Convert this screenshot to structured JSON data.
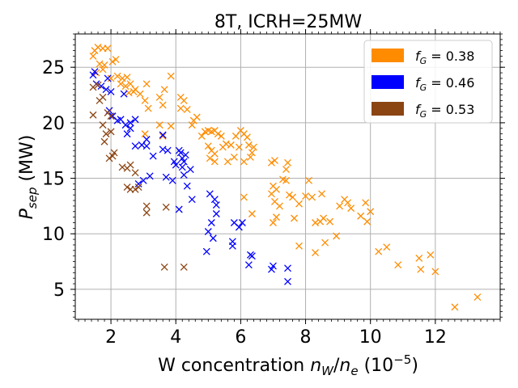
{
  "chart_data": {
    "type": "scatter",
    "title": "8T, ICRH=25MW",
    "xlabel": {
      "prefix": "W concentration ",
      "var1": "n",
      "sub1": "W",
      "slash": "/",
      "var2": "n",
      "sub2": "e",
      "unit_open": " (10",
      "unit_exp": "−5",
      "unit_close": ")"
    },
    "ylabel": {
      "var": "P",
      "sub": "sep",
      "unit": " (MW)"
    },
    "xlim": [
      0.9,
      14.0
    ],
    "ylim": [
      2.3,
      28.0
    ],
    "x_ticks": [
      2,
      4,
      6,
      8,
      10,
      12
    ],
    "y_ticks": [
      5,
      10,
      15,
      20,
      25
    ],
    "grid": true,
    "legend_position": "top-right",
    "marker": "x",
    "series": [
      {
        "name": "f_G=0.38",
        "legend_var": "f",
        "legend_sub": "G",
        "legend_value": " = 0.38",
        "color": "#ff8c00",
        "points": [
          [
            1.45,
            26.0
          ],
          [
            1.5,
            26.5
          ],
          [
            1.6,
            26.8
          ],
          [
            1.75,
            26.7
          ],
          [
            1.9,
            26.7
          ],
          [
            1.65,
            25.3
          ],
          [
            1.8,
            25.2
          ],
          [
            2.05,
            25.5
          ],
          [
            2.15,
            25.7
          ],
          [
            1.55,
            24.5
          ],
          [
            1.75,
            24.8
          ],
          [
            2.0,
            24.0
          ],
          [
            2.2,
            24.2
          ],
          [
            2.35,
            24.0
          ],
          [
            2.5,
            24.1
          ],
          [
            2.3,
            23.5
          ],
          [
            2.45,
            23.3
          ],
          [
            2.6,
            23.5
          ],
          [
            2.75,
            23.0
          ],
          [
            2.55,
            22.7
          ],
          [
            2.7,
            22.8
          ],
          [
            2.9,
            22.6
          ],
          [
            3.1,
            23.5
          ],
          [
            3.05,
            22.0
          ],
          [
            3.15,
            21.3
          ],
          [
            3.5,
            22.3
          ],
          [
            3.6,
            21.6
          ],
          [
            3.65,
            23.0
          ],
          [
            3.85,
            24.2
          ],
          [
            4.15,
            22.3
          ],
          [
            4.25,
            22.0
          ],
          [
            4.15,
            21.3
          ],
          [
            4.35,
            21.2
          ],
          [
            4.55,
            20.2
          ],
          [
            4.65,
            20.5
          ],
          [
            4.5,
            19.8
          ],
          [
            4.8,
            18.8
          ],
          [
            4.9,
            19.2
          ],
          [
            5.0,
            19.3
          ],
          [
            5.1,
            19.2
          ],
          [
            5.2,
            19.3
          ],
          [
            5.3,
            19.0
          ],
          [
            5.4,
            18.8
          ],
          [
            5.0,
            17.9
          ],
          [
            5.1,
            17.5
          ],
          [
            5.2,
            17.2
          ],
          [
            5.05,
            16.8
          ],
          [
            5.2,
            16.5
          ],
          [
            5.45,
            17.8
          ],
          [
            5.55,
            18.1
          ],
          [
            5.85,
            18.8
          ],
          [
            6.0,
            19.3
          ],
          [
            6.1,
            19.0
          ],
          [
            6.2,
            18.7
          ],
          [
            5.7,
            18.0
          ],
          [
            5.95,
            17.8
          ],
          [
            6.25,
            18.0
          ],
          [
            6.35,
            17.3
          ],
          [
            6.4,
            17.8
          ],
          [
            5.8,
            16.9
          ],
          [
            6.1,
            16.5
          ],
          [
            6.3,
            16.9
          ],
          [
            5.6,
            16.5
          ],
          [
            6.1,
            13.3
          ],
          [
            6.35,
            11.8
          ],
          [
            6.95,
            16.4
          ],
          [
            7.05,
            16.6
          ],
          [
            7.4,
            15.8
          ],
          [
            7.45,
            16.4
          ],
          [
            7.3,
            14.9
          ],
          [
            7.0,
            14.3
          ],
          [
            7.1,
            14.0
          ],
          [
            6.95,
            13.6
          ],
          [
            7.4,
            14.8
          ],
          [
            7.05,
            12.9
          ],
          [
            7.2,
            12.5
          ],
          [
            7.1,
            11.5
          ],
          [
            7.0,
            11.0
          ],
          [
            7.5,
            13.5
          ],
          [
            7.6,
            13.3
          ],
          [
            7.8,
            12.7
          ],
          [
            8.0,
            13.4
          ],
          [
            8.1,
            14.8
          ],
          [
            8.2,
            13.3
          ],
          [
            8.5,
            13.6
          ],
          [
            7.65,
            11.4
          ],
          [
            7.8,
            8.9
          ],
          [
            8.3,
            11.0
          ],
          [
            8.45,
            11.1
          ],
          [
            8.55,
            11.4
          ],
          [
            8.3,
            8.3
          ],
          [
            8.6,
            9.2
          ],
          [
            8.75,
            11.1
          ],
          [
            8.95,
            9.8
          ],
          [
            9.05,
            12.5
          ],
          [
            9.2,
            13.1
          ],
          [
            9.3,
            12.8
          ],
          [
            9.4,
            12.3
          ],
          [
            9.7,
            11.6
          ],
          [
            9.85,
            12.8
          ],
          [
            9.9,
            11.1
          ],
          [
            10.0,
            12.0
          ],
          [
            10.25,
            8.4
          ],
          [
            10.5,
            8.8
          ],
          [
            10.85,
            7.2
          ],
          [
            11.5,
            7.8
          ],
          [
            11.55,
            6.8
          ],
          [
            11.85,
            8.1
          ],
          [
            12.0,
            6.6
          ],
          [
            12.6,
            3.4
          ],
          [
            13.3,
            4.3
          ],
          [
            3.05,
            19.0
          ],
          [
            3.5,
            19.8
          ],
          [
            3.6,
            18.8
          ],
          [
            3.85,
            19.7
          ]
        ]
      },
      {
        "name": "f_G=0.46",
        "legend_var": "f",
        "legend_sub": "G",
        "legend_value": " = 0.46",
        "color": "#0000ff",
        "points": [
          [
            1.45,
            24.3
          ],
          [
            1.5,
            24.6
          ],
          [
            1.55,
            23.5
          ],
          [
            1.7,
            23.3
          ],
          [
            1.85,
            23.0
          ],
          [
            1.9,
            24.0
          ],
          [
            2.0,
            22.8
          ],
          [
            1.95,
            21.1
          ],
          [
            2.05,
            20.6
          ],
          [
            2.2,
            20.2
          ],
          [
            2.3,
            20.3
          ],
          [
            2.4,
            22.6
          ],
          [
            2.6,
            20.0
          ],
          [
            2.45,
            19.8
          ],
          [
            2.6,
            19.5
          ],
          [
            2.5,
            19.0
          ],
          [
            2.75,
            20.3
          ],
          [
            2.75,
            17.9
          ],
          [
            2.95,
            18.0
          ],
          [
            3.1,
            18.5
          ],
          [
            3.2,
            15.2
          ],
          [
            3.0,
            14.8
          ],
          [
            2.85,
            14.5
          ],
          [
            3.3,
            17.0
          ],
          [
            3.1,
            17.9
          ],
          [
            3.6,
            18.9
          ],
          [
            3.6,
            17.6
          ],
          [
            3.75,
            17.5
          ],
          [
            3.7,
            15.1
          ],
          [
            3.9,
            14.8
          ],
          [
            3.95,
            16.5
          ],
          [
            4.15,
            17.3
          ],
          [
            4.2,
            16.8
          ],
          [
            4.25,
            16.5
          ],
          [
            4.3,
            17.1
          ],
          [
            4.2,
            16.0
          ],
          [
            4.25,
            15.3
          ],
          [
            4.45,
            15.8
          ],
          [
            4.35,
            14.3
          ],
          [
            4.1,
            12.2
          ],
          [
            4.5,
            13.1
          ],
          [
            4.95,
            8.4
          ],
          [
            5.0,
            10.2
          ],
          [
            5.1,
            11.0
          ],
          [
            5.05,
            13.6
          ],
          [
            5.2,
            13.1
          ],
          [
            5.25,
            12.6
          ],
          [
            5.25,
            11.8
          ],
          [
            5.15,
            9.6
          ],
          [
            5.8,
            11.0
          ],
          [
            5.95,
            10.6
          ],
          [
            6.05,
            11.0
          ],
          [
            5.75,
            9.3
          ],
          [
            5.75,
            8.9
          ],
          [
            6.3,
            8.1
          ],
          [
            6.25,
            7.2
          ],
          [
            6.35,
            8.0
          ],
          [
            6.95,
            6.8
          ],
          [
            7.0,
            7.1
          ],
          [
            7.45,
            6.9
          ],
          [
            7.45,
            5.7
          ],
          [
            4.1,
            17.5
          ],
          [
            4.0,
            16.2
          ]
        ]
      },
      {
        "name": "f_G=0.53",
        "legend_var": "f",
        "legend_sub": "G",
        "legend_value": " = 0.53",
        "color": "#8b4513",
        "points": [
          [
            1.45,
            23.2
          ],
          [
            1.6,
            23.4
          ],
          [
            1.65,
            22.0
          ],
          [
            1.75,
            22.3
          ],
          [
            1.45,
            20.7
          ],
          [
            1.9,
            20.9
          ],
          [
            2.0,
            20.6
          ],
          [
            1.75,
            19.8
          ],
          [
            1.85,
            19.0
          ],
          [
            1.8,
            18.3
          ],
          [
            2.0,
            19.2
          ],
          [
            2.05,
            17.0
          ],
          [
            1.95,
            16.8
          ],
          [
            2.1,
            17.3
          ],
          [
            2.35,
            16.0
          ],
          [
            2.5,
            15.9
          ],
          [
            2.6,
            16.2
          ],
          [
            2.75,
            15.5
          ],
          [
            2.5,
            14.2
          ],
          [
            2.6,
            14.0
          ],
          [
            2.75,
            14.0
          ],
          [
            2.85,
            14.2
          ],
          [
            3.1,
            12.5
          ],
          [
            3.1,
            11.9
          ],
          [
            3.7,
            12.4
          ],
          [
            3.65,
            7.0
          ],
          [
            4.25,
            7.0
          ]
        ]
      }
    ]
  }
}
